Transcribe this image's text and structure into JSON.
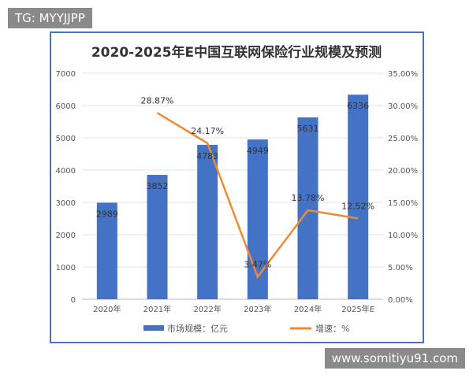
{
  "overlays": {
    "top_left": "TG: MYYJJPP",
    "bottom_right": "www.somitiyu91.com"
  },
  "chart_data": {
    "type": "bar+line",
    "title": "2020-2025年E中国互联网保险行业规模及预测",
    "categories": [
      "2020年",
      "2021年",
      "2022年",
      "2023年",
      "2024年",
      "2025年E"
    ],
    "series": [
      {
        "name": "市场规模：亿元",
        "type": "bar",
        "axis": "left",
        "color": "#4472c4",
        "values": [
          2989,
          3852,
          4783,
          4949,
          5631,
          6336
        ],
        "labels": [
          "2989",
          "3852",
          "4783",
          "4949",
          "5631",
          "6336"
        ]
      },
      {
        "name": "增速：%",
        "type": "line",
        "axis": "right",
        "color": "#ed8b35",
        "values": [
          null,
          28.87,
          24.17,
          3.47,
          13.78,
          12.52
        ],
        "labels": [
          "",
          "28.87%",
          "24.17%",
          "3.47%",
          "13.78%",
          "12.52%"
        ]
      }
    ],
    "y_left": {
      "range": [
        0,
        7000
      ],
      "ticks": [
        "0",
        "1000",
        "2000",
        "3000",
        "4000",
        "5000",
        "6000",
        "7000"
      ]
    },
    "y_right": {
      "range": [
        0,
        35
      ],
      "ticks": [
        "0.00%",
        "5.00%",
        "10.00%",
        "15.00%",
        "20.00%",
        "25.00%",
        "30.00%",
        "35.00%"
      ]
    },
    "grid": true,
    "legend": "bottom"
  }
}
